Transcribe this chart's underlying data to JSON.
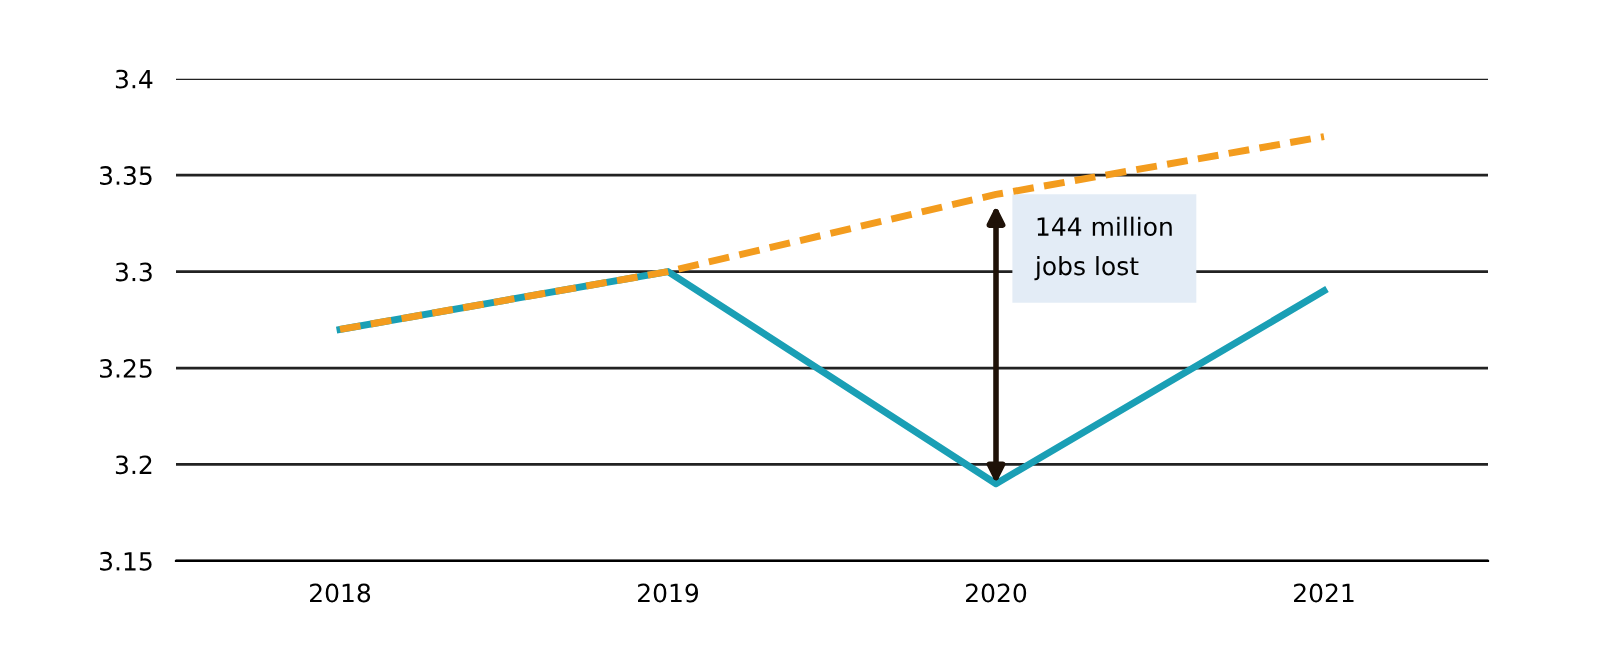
{
  "chart_data": {
    "type": "line",
    "categories": [
      "2018",
      "2019",
      "2020",
      "2021"
    ],
    "series": [
      {
        "color": "#f39c1e",
        "values": [
          3.27,
          3.3,
          3.34,
          3.37
        ],
        "line_style": "dashed"
      },
      {
        "color": "#1a9fb5",
        "values": [
          3.27,
          3.3,
          3.19,
          3.29
        ],
        "line_style": "solid"
      }
    ],
    "ylim": [
      3.15,
      3.4
    ],
    "yticks": [
      3.15,
      3.2,
      3.25,
      3.3,
      3.35,
      3.4
    ],
    "grid": "y",
    "legend": false,
    "marker": "none",
    "annotations": [
      "144 million\njobs lost"
    ]
  }
}
